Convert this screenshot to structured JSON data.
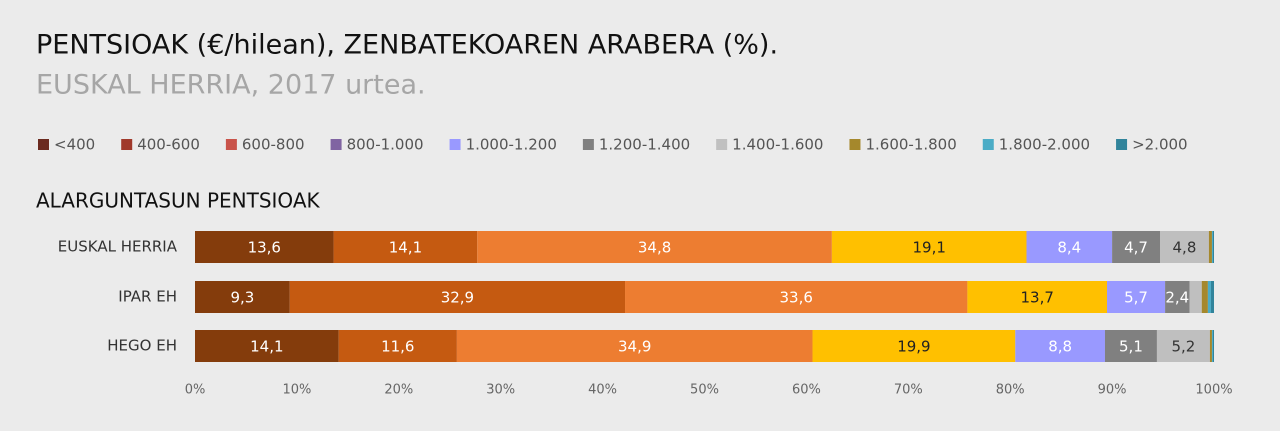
{
  "chart_data": {
    "type": "stacked_bar_horizontal",
    "title": "PENTSIOAK (€/hilean), ZENBATEKOAREN ARABERA (%).",
    "subtitle": "EUSKAL HERRIA, 2017 urtea.",
    "section_title": "ALARGUNTASUN PENTSIOAK",
    "categories": [
      "EUSKAL HERRIA",
      "IPAR EH",
      "HEGO EH"
    ],
    "xlim": [
      0,
      100
    ],
    "xticks": [
      {
        "value": 0,
        "label": "0%"
      },
      {
        "value": 10,
        "label": "10%"
      },
      {
        "value": 20,
        "label": "20%"
      },
      {
        "value": 30,
        "label": "30%"
      },
      {
        "value": 40,
        "label": "40%"
      },
      {
        "value": 50,
        "label": "50%"
      },
      {
        "value": 60,
        "label": "60%"
      },
      {
        "value": 70,
        "label": "70%"
      },
      {
        "value": 80,
        "label": "80%"
      },
      {
        "value": 90,
        "label": "90%"
      },
      {
        "value": 100,
        "label": "100%"
      }
    ],
    "legend": "top",
    "series": [
      {
        "name": "<400",
        "color": "#843c0c",
        "legend_color": "#6b2a1f",
        "label_color": "#ffffff",
        "values": [
          13.6,
          9.3,
          14.1
        ],
        "value_labels": [
          "13,6",
          "9,3",
          "14,1"
        ]
      },
      {
        "name": "400-600",
        "color": "#c55a11",
        "legend_color": "#a0392b",
        "label_color": "#ffffff",
        "values": [
          14.1,
          32.9,
          11.6
        ],
        "value_labels": [
          "14,1",
          "32,9",
          "11,6"
        ]
      },
      {
        "name": "600-800",
        "color": "#ed7d31",
        "legend_color": "#c9534a",
        "label_color": "#ffffff",
        "values": [
          34.8,
          33.6,
          34.9
        ],
        "value_labels": [
          "34,8",
          "33,6",
          "34,9"
        ]
      },
      {
        "name": "800-1.000",
        "color": "#ffc000",
        "legend_color": "#8064a2",
        "label_color": "#222222",
        "values": [
          19.1,
          13.7,
          19.9
        ],
        "value_labels": [
          "19,1",
          "13,7",
          "19,9"
        ]
      },
      {
        "name": "1.000-1.200",
        "color": "#9999ff",
        "legend_color": "#9999ff",
        "label_color": "#ffffff",
        "values": [
          8.4,
          5.7,
          8.8
        ],
        "value_labels": [
          "8,4",
          "5,7",
          "8,8"
        ]
      },
      {
        "name": "1.200-1.400",
        "color": "#808080",
        "legend_color": "#808080",
        "label_color": "#ffffff",
        "values": [
          4.7,
          2.4,
          5.1
        ],
        "value_labels": [
          "4,7",
          "2,4",
          "5,1"
        ]
      },
      {
        "name": "1.400-1.600",
        "color": "#bfbfbf",
        "legend_color": "#c0c0c0",
        "label_color": "#333333",
        "values": [
          4.8,
          1.2,
          5.2
        ],
        "value_labels": [
          "4,8",
          null,
          "5,2"
        ]
      },
      {
        "name": "1.600-1.800",
        "color": "#a5882c",
        "legend_color": "#a5882c",
        "label_color": "#333333",
        "values": [
          0.3,
          0.6,
          0.2
        ]
      },
      {
        "name": "1.800-2.000",
        "color": "#4bacc6",
        "legend_color": "#4bacc6",
        "label_color": "#333333",
        "values": [
          0.1,
          0.3,
          0.1
        ]
      },
      {
        "name": ">2.000",
        "color": "#31849b",
        "legend_color": "#31849b",
        "label_color": "#333333",
        "values": [
          0.1,
          0.3,
          0.1
        ]
      }
    ]
  }
}
